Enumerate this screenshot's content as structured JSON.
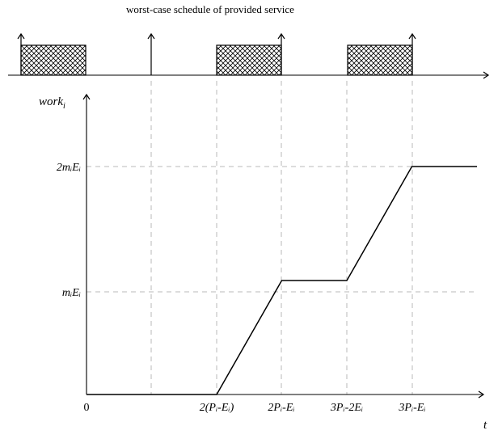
{
  "schedule": {
    "title": "worst-case schedule of provided service"
  },
  "chart_data": {
    "type": "line",
    "ylabel": "work",
    "ylabel_sub": "i",
    "xlabel": "t",
    "x_ticks": [
      {
        "label": "0"
      },
      {
        "label": ""
      },
      {
        "label": "2(Pᵢ-Eᵢ)"
      },
      {
        "label": "2Pᵢ-Eᵢ"
      },
      {
        "label": "3Pᵢ-2Eᵢ"
      },
      {
        "label": "3Pᵢ-Eᵢ"
      }
    ],
    "y_ticks": [
      {
        "label": "mᵢEᵢ",
        "value": 1
      },
      {
        "label": "2mᵢEᵢ",
        "value": 2
      }
    ],
    "x": [
      0,
      1,
      2,
      3,
      4,
      5,
      6
    ],
    "values": [
      0,
      0,
      0,
      1,
      1,
      2,
      2
    ],
    "grid": true
  }
}
